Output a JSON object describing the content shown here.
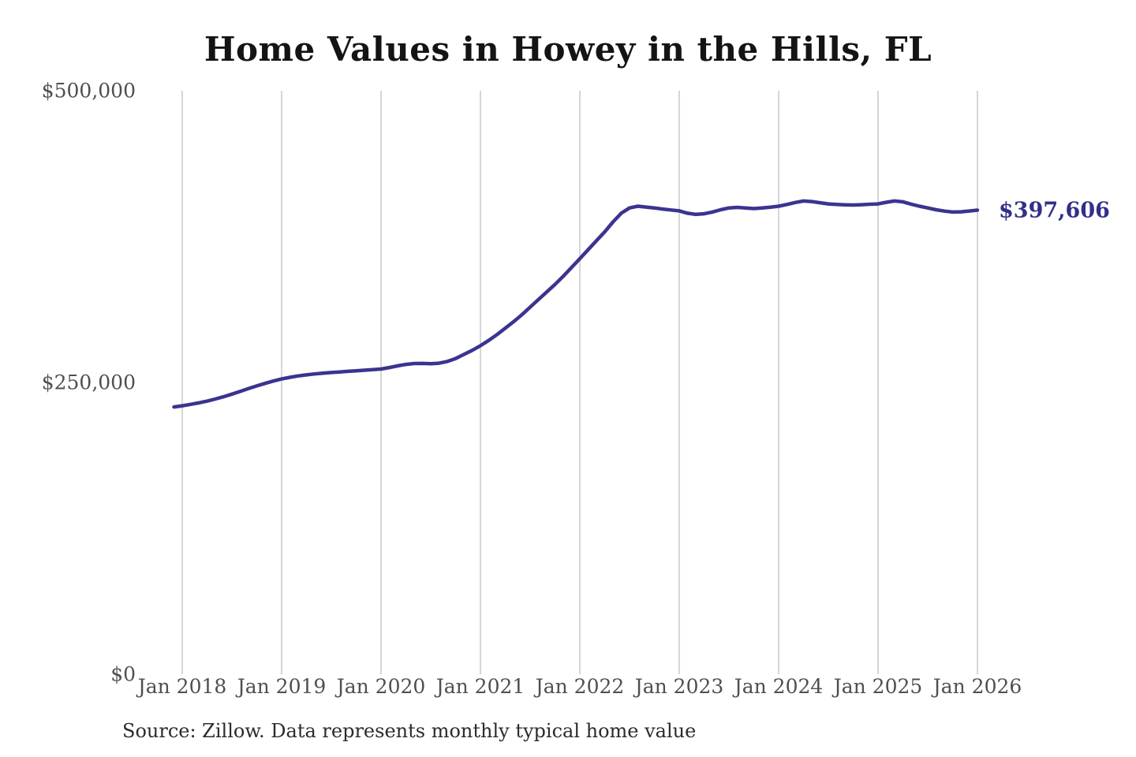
{
  "title": "Home Values in Howey in the Hills, FL",
  "source_note": "Source: Zillow. Data represents monthly typical home value",
  "end_label": "$397,606",
  "colors": {
    "background": "#ffffff",
    "line": "#3a3490",
    "value_label": "#322f8a",
    "grid": "#cccccc",
    "axis_text": "#4f4f4f",
    "title_text": "#141414",
    "source_text": "#2b2b2b"
  },
  "chart_data": {
    "type": "line",
    "title": "Home Values in Howey in the Hills, FL",
    "series_name": "Monthly typical home value",
    "unit": "USD",
    "x_start": "Dec 2017",
    "x_interval": "month",
    "x_ticks": [
      "Jan 2018",
      "Jan 2019",
      "Jan 2020",
      "Jan 2021",
      "Jan 2022",
      "Jan 2023",
      "Jan 2024",
      "Jan 2025",
      "Jan 2026"
    ],
    "y_ticks": [
      {
        "label": "$0",
        "value": 0
      },
      {
        "label": "$250,000",
        "value": 250000
      },
      {
        "label": "$500,000",
        "value": 500000
      }
    ],
    "ylim": [
      0,
      500000
    ],
    "grid": "vertical-only",
    "legend": "none",
    "end_value": 397606,
    "values": [
      229000,
      230000,
      231200,
      232500,
      234000,
      235800,
      237800,
      240000,
      242300,
      244700,
      247000,
      249200,
      251200,
      253000,
      254400,
      255600,
      256500,
      257300,
      258000,
      258500,
      259000,
      259500,
      260000,
      260500,
      261000,
      261500,
      262800,
      264200,
      265500,
      266200,
      266300,
      266000,
      266500,
      268000,
      270500,
      274000,
      277500,
      281500,
      286000,
      291000,
      296500,
      302000,
      308000,
      314500,
      321000,
      327500,
      334000,
      341000,
      348500,
      356000,
      363700,
      371400,
      379000,
      387500,
      395000,
      399500,
      401000,
      400300,
      399500,
      398600,
      397800,
      397000,
      395000,
      394000,
      394500,
      396000,
      398000,
      399500,
      400000,
      399500,
      399000,
      399500,
      400200,
      401000,
      402500,
      404200,
      405500,
      405000,
      404000,
      403000,
      402500,
      402200,
      402000,
      402300,
      402700,
      403000,
      404400,
      405500,
      404800,
      402800,
      401000,
      399500,
      398000,
      396800,
      396000,
      396200,
      396900,
      397606
    ]
  }
}
